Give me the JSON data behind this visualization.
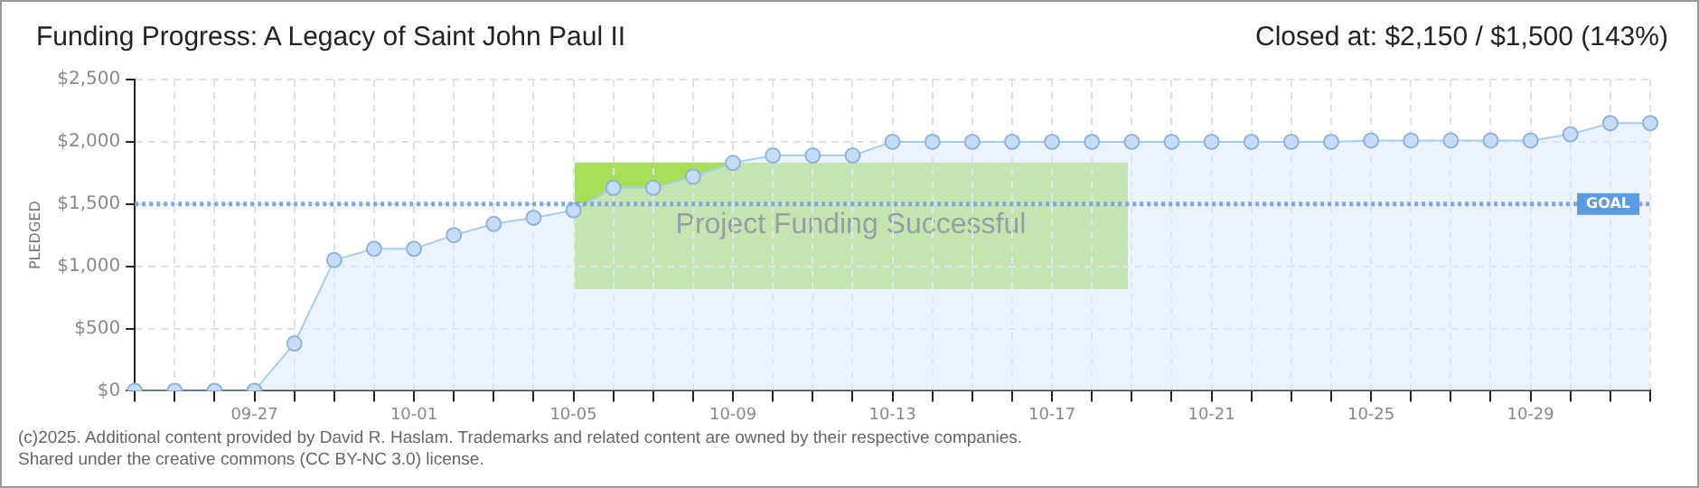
{
  "chart_data": {
    "type": "area",
    "title": "Funding Progress: A Legacy of Saint John Paul II",
    "subtitle": "Closed at: $2,150 / $1,500 (143%)",
    "ylabel": "PLEDGED",
    "categories": [
      null,
      null,
      null,
      "09-27",
      null,
      null,
      null,
      "10-01",
      null,
      null,
      null,
      "10-05",
      null,
      null,
      null,
      "10-09",
      null,
      null,
      null,
      "10-13",
      null,
      null,
      null,
      "10-17",
      null,
      null,
      null,
      "10-21",
      null,
      null,
      null,
      "10-25",
      null,
      null,
      null,
      "10-29",
      null,
      null,
      null
    ],
    "series": [
      {
        "color": "#a9cbef",
        "values": [
          0,
          0,
          0,
          0,
          380,
          1050,
          1140,
          1140,
          1250,
          1340,
          1390,
          1450,
          1630,
          1630,
          1720,
          1830,
          1890,
          1890,
          1890,
          2000,
          2000,
          2000,
          2000,
          2000,
          2000,
          2000,
          2000,
          2000,
          2000,
          2000,
          2000,
          2010,
          2010,
          2010,
          2010,
          2010,
          2060,
          2150,
          2150
        ]
      }
    ],
    "ylim": [
      0,
      2500
    ],
    "yticks": [
      {
        "value": 0,
        "label": "$0"
      },
      {
        "value": 500,
        "label": "$500"
      },
      {
        "value": 1000,
        "label": "$1,000"
      },
      {
        "value": 1500,
        "label": "$1,500"
      },
      {
        "value": 2000,
        "label": "$2,000"
      },
      {
        "value": 2500,
        "label": "$2,500"
      }
    ],
    "grid": true,
    "legend": false,
    "marker": "circle",
    "line_style": "solid",
    "ref_lines": [
      {
        "axis": "y",
        "value": 1500,
        "label": "GOAL",
        "color": "#7fa9dc",
        "line_style": "dotted"
      }
    ],
    "annotations": [
      "Project Funding Successful",
      "(c)2025. Additional content provided by David R. Haslam. Trademarks and related content are owned by their respective companies.",
      "Shared under the creative commons (CC BY-NC 3.0) license."
    ]
  }
}
